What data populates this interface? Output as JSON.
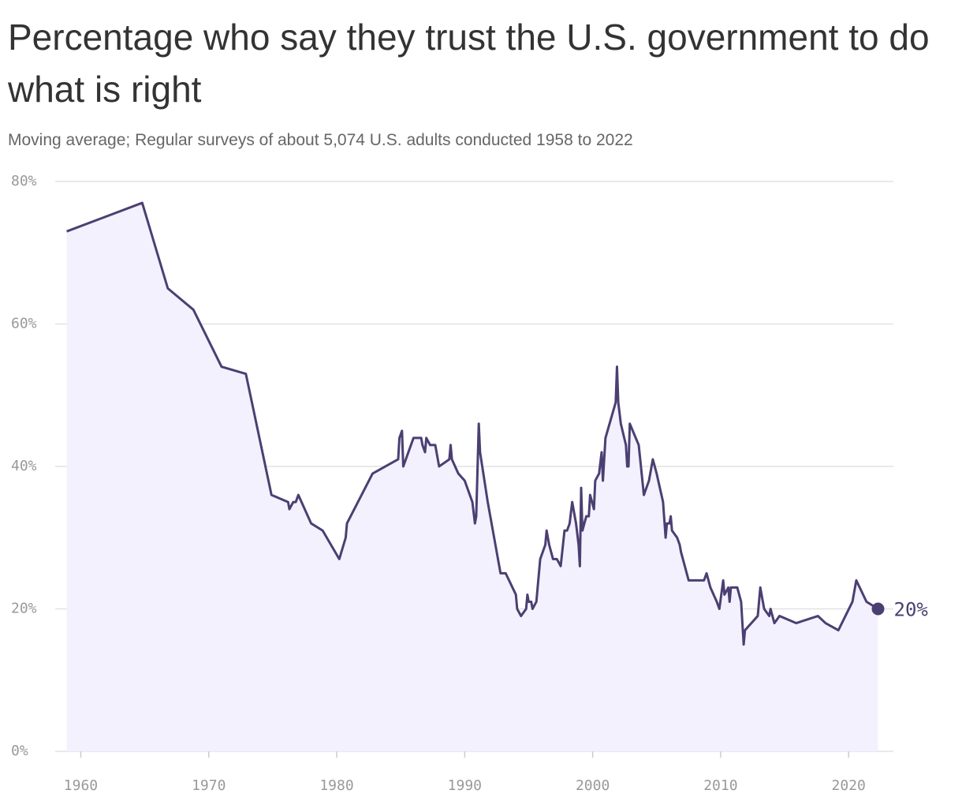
{
  "chart_data": {
    "type": "line",
    "title": "Percentage who say they trust the U.S. government to do what is right",
    "subtitle": "Moving average; Regular surveys of about 5,074 U.S. adults conducted 1958 to 2022",
    "color": "#4b3f72",
    "fill": "#f3f1fd",
    "x": [
      1958.9,
      1964.8,
      1966.8,
      1968.8,
      1971,
      1972.9,
      1974.9,
      1976.2,
      1976.3,
      1976.6,
      1976.8,
      1977.0,
      1978,
      1978.9,
      1980.2,
      1980.7,
      1980.8,
      1982.8,
      1984.8,
      1984.9,
      1985.1,
      1985.2,
      1985.6,
      1986.0,
      1986.6,
      1986.7,
      1986.9,
      1987.0,
      1987.3,
      1987.7,
      1988.0,
      1988.8,
      1988.9,
      1989.0,
      1989.5,
      1990.0,
      1990.6,
      1990.8,
      1990.9,
      1991.1,
      1991.2,
      1991.8,
      1992.4,
      1992.8,
      1993.2,
      1994.0,
      1994.1,
      1994.4,
      1994.8,
      1994.9,
      1995.0,
      1995.2,
      1995.3,
      1995.6,
      1995.9,
      1996.3,
      1996.4,
      1996.6,
      1996.9,
      1997.2,
      1997.5,
      1997.8,
      1998.0,
      1998.2,
      1998.4,
      1998.7,
      1998.9,
      1999.0,
      1999.1,
      1999.2,
      1999.5,
      1999.7,
      1999.8,
      2000.1,
      2000.2,
      2000.5,
      2000.7,
      2000.8,
      2001.0,
      2001.8,
      2001.9,
      2002.0,
      2002.2,
      2002.6,
      2002.7,
      2002.8,
      2002.9,
      2003.6,
      2004.0,
      2004.4,
      2004.7,
      2005.0,
      2005.5,
      2005.7,
      2005.8,
      2006.0,
      2006.1,
      2006.2,
      2006.6,
      2006.8,
      2006.9,
      2007.5,
      2008.7,
      2008.9,
      2009.2,
      2009.7,
      2009.9,
      2010.2,
      2010.3,
      2010.6,
      2010.7,
      2010.8,
      2011.3,
      2011.6,
      2011.8,
      2011.9,
      2012.9,
      2013.1,
      2013.4,
      2013.8,
      2013.9,
      2014.2,
      2014.6,
      2015.9,
      2017.6,
      2018.2,
      2019.2,
      2020.3,
      2020.6,
      2021.4,
      2022.3
    ],
    "values": [
      73,
      77,
      65,
      62,
      54,
      53,
      36,
      35,
      34,
      35,
      35,
      36,
      32,
      31,
      27,
      30,
      32,
      39,
      41,
      44,
      45,
      40,
      42,
      44,
      44,
      43,
      42,
      44,
      43,
      43,
      40,
      41,
      43,
      41,
      39,
      38,
      35,
      32,
      33,
      46,
      42,
      35,
      29,
      25,
      25,
      22,
      20,
      19,
      20,
      22,
      21,
      21,
      20,
      21,
      27,
      29,
      31,
      29,
      27,
      27,
      26,
      31,
      31,
      32,
      35,
      32,
      29,
      26,
      37,
      31,
      33,
      33,
      36,
      34,
      38,
      39,
      42,
      38,
      44,
      49,
      54,
      49,
      46,
      43,
      40,
      40,
      46,
      43,
      36,
      38,
      41,
      39,
      35,
      30,
      32,
      32,
      33,
      31,
      30,
      29,
      28,
      24,
      24,
      25,
      23,
      21,
      20,
      24,
      22,
      23,
      21,
      23,
      23,
      21,
      15,
      17,
      19,
      23,
      20,
      19,
      20,
      18,
      19,
      18,
      19,
      18,
      17,
      21,
      24,
      21,
      20
    ],
    "value_labels": [
      null,
      null,
      null,
      null,
      null,
      null,
      null,
      null,
      null,
      null,
      null,
      null,
      null,
      null,
      null,
      null,
      null,
      null,
      null,
      null,
      null,
      null,
      null,
      null,
      null,
      null,
      null,
      null,
      null,
      null,
      null,
      null,
      null,
      null,
      null,
      null,
      null,
      null,
      null,
      null,
      null,
      null,
      null,
      null,
      null,
      null,
      null,
      null,
      null,
      null,
      null,
      null,
      null,
      null,
      null,
      null,
      null,
      null,
      null,
      null,
      null,
      null,
      null,
      null,
      null,
      null,
      null,
      null,
      null,
      null,
      null,
      null,
      null,
      null,
      null,
      null,
      null,
      null,
      null,
      null,
      null,
      null,
      null,
      null,
      null,
      null,
      null,
      null,
      null,
      null,
      null,
      null,
      null,
      null,
      null,
      null,
      null,
      null,
      null,
      null,
      null,
      null,
      null,
      null,
      null,
      null,
      null,
      null,
      null,
      null,
      null,
      null,
      null,
      null,
      null,
      null,
      null,
      null,
      null,
      null,
      null,
      null,
      null,
      null,
      null,
      null,
      null,
      null,
      null,
      null,
      "20%"
    ],
    "xlim": [
      1958,
      2023.5
    ],
    "xticks": [
      1960,
      1970,
      1980,
      1990,
      2000,
      2010,
      2020
    ],
    "ylim": [
      0,
      80
    ],
    "yticks": [
      {
        "value": 0,
        "label": "0%"
      },
      {
        "value": 20,
        "label": "20%"
      },
      {
        "value": 40,
        "label": "40%"
      },
      {
        "value": 60,
        "label": "60%"
      },
      {
        "value": 80,
        "label": "80%"
      }
    ],
    "grid": true
  }
}
